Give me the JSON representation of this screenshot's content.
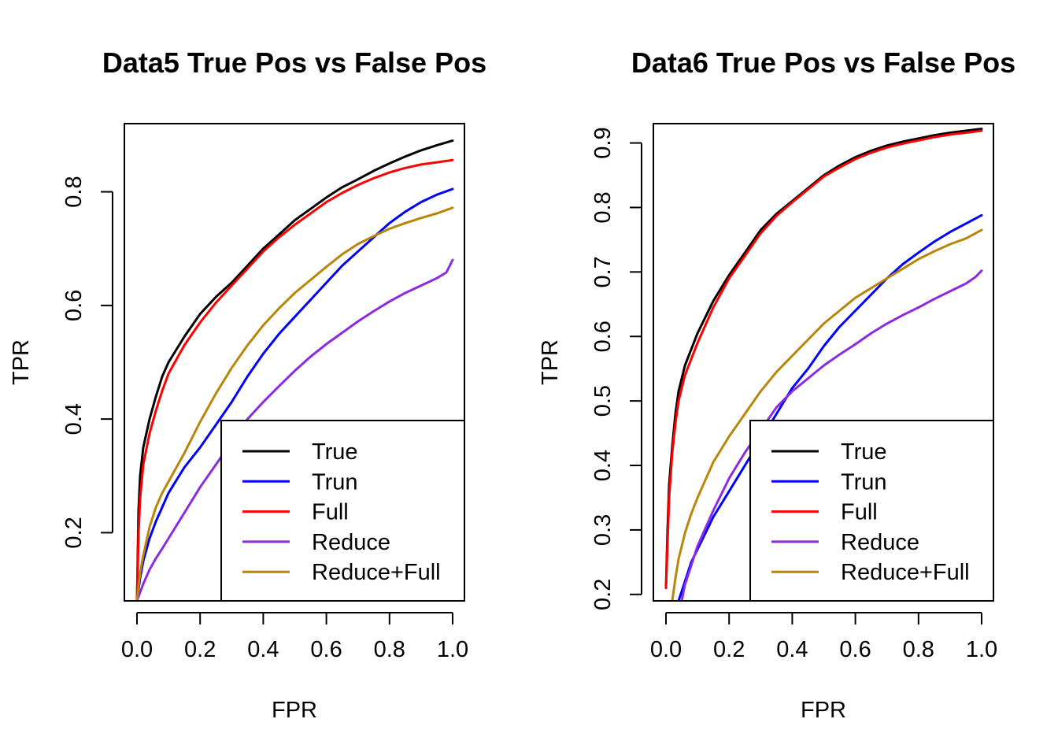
{
  "chart_data": [
    {
      "type": "line",
      "title": "Data5 True Pos vs False Pos",
      "xlabel": "FPR",
      "ylabel": "TPR",
      "xlim": [
        0,
        1
      ],
      "ylim": [
        0.08,
        0.92
      ],
      "xticks": [
        0,
        0.2,
        0.4,
        0.6,
        0.8,
        1
      ],
      "xtick_labels": [
        "0.0",
        "0.2",
        "0.4",
        "0.6",
        "0.8",
        "1.0"
      ],
      "yticks": [
        0.2,
        0.4,
        0.6,
        0.8
      ],
      "ytick_labels": [
        "0.2",
        "0.4",
        "0.6",
        "0.8"
      ],
      "legend_position": "bottom-right",
      "series": [
        {
          "name": "True",
          "color": "#000000",
          "x": [
            0,
            0.005,
            0.01,
            0.02,
            0.04,
            0.06,
            0.08,
            0.1,
            0.15,
            0.2,
            0.25,
            0.3,
            0.35,
            0.4,
            0.45,
            0.5,
            0.55,
            0.6,
            0.65,
            0.7,
            0.75,
            0.8,
            0.85,
            0.9,
            0.95,
            1.0
          ],
          "y": [
            0.08,
            0.24,
            0.3,
            0.35,
            0.4,
            0.44,
            0.475,
            0.5,
            0.545,
            0.585,
            0.615,
            0.64,
            0.67,
            0.7,
            0.725,
            0.75,
            0.77,
            0.79,
            0.808,
            0.822,
            0.837,
            0.85,
            0.862,
            0.873,
            0.882,
            0.89
          ]
        },
        {
          "name": "Trun",
          "color": "#0000ff",
          "x": [
            0,
            0.01,
            0.02,
            0.04,
            0.06,
            0.08,
            0.1,
            0.15,
            0.2,
            0.25,
            0.3,
            0.35,
            0.4,
            0.45,
            0.5,
            0.55,
            0.6,
            0.65,
            0.7,
            0.75,
            0.8,
            0.85,
            0.9,
            0.95,
            1.0
          ],
          "y": [
            0.08,
            0.12,
            0.15,
            0.19,
            0.22,
            0.245,
            0.27,
            0.315,
            0.35,
            0.39,
            0.43,
            0.475,
            0.515,
            0.55,
            0.58,
            0.61,
            0.64,
            0.67,
            0.695,
            0.72,
            0.745,
            0.765,
            0.782,
            0.795,
            0.805
          ]
        },
        {
          "name": "Full",
          "color": "#ff0000",
          "x": [
            0,
            0.005,
            0.01,
            0.02,
            0.04,
            0.06,
            0.08,
            0.1,
            0.15,
            0.2,
            0.25,
            0.3,
            0.35,
            0.4,
            0.45,
            0.5,
            0.55,
            0.6,
            0.65,
            0.7,
            0.75,
            0.8,
            0.85,
            0.9,
            0.95,
            1.0
          ],
          "y": [
            0.08,
            0.2,
            0.26,
            0.32,
            0.375,
            0.415,
            0.45,
            0.48,
            0.53,
            0.57,
            0.605,
            0.635,
            0.665,
            0.695,
            0.72,
            0.742,
            0.762,
            0.782,
            0.798,
            0.812,
            0.824,
            0.834,
            0.842,
            0.848,
            0.852,
            0.856
          ]
        },
        {
          "name": "Reduce",
          "color": "#8a2be2",
          "x": [
            0,
            0.02,
            0.04,
            0.06,
            0.08,
            0.1,
            0.15,
            0.2,
            0.25,
            0.3,
            0.35,
            0.4,
            0.45,
            0.5,
            0.55,
            0.6,
            0.65,
            0.7,
            0.75,
            0.8,
            0.85,
            0.9,
            0.95,
            0.98,
            1.0
          ],
          "y": [
            0.08,
            0.11,
            0.135,
            0.155,
            0.172,
            0.19,
            0.235,
            0.28,
            0.32,
            0.36,
            0.4,
            0.43,
            0.458,
            0.485,
            0.51,
            0.532,
            0.552,
            0.572,
            0.59,
            0.607,
            0.622,
            0.635,
            0.648,
            0.658,
            0.68
          ]
        },
        {
          "name": "Reduce+Full",
          "color": "#b8860b",
          "x": [
            0,
            0.01,
            0.02,
            0.04,
            0.06,
            0.08,
            0.1,
            0.15,
            0.2,
            0.25,
            0.3,
            0.35,
            0.4,
            0.45,
            0.5,
            0.55,
            0.6,
            0.65,
            0.7,
            0.75,
            0.8,
            0.85,
            0.9,
            0.95,
            1.0
          ],
          "y": [
            0.08,
            0.13,
            0.16,
            0.21,
            0.245,
            0.27,
            0.29,
            0.34,
            0.395,
            0.445,
            0.49,
            0.53,
            0.565,
            0.595,
            0.622,
            0.645,
            0.668,
            0.69,
            0.708,
            0.722,
            0.735,
            0.745,
            0.754,
            0.762,
            0.772
          ]
        }
      ]
    },
    {
      "type": "line",
      "title": "Data6 True Pos vs False Pos",
      "xlabel": "FPR",
      "ylabel": "TPR",
      "xlim": [
        0,
        1
      ],
      "ylim": [
        0.19,
        0.93
      ],
      "xticks": [
        0,
        0.2,
        0.4,
        0.6,
        0.8,
        1
      ],
      "xtick_labels": [
        "0.0",
        "0.2",
        "0.4",
        "0.6",
        "0.8",
        "1.0"
      ],
      "yticks": [
        0.2,
        0.3,
        0.4,
        0.5,
        0.6,
        0.7,
        0.8,
        0.9
      ],
      "ytick_labels": [
        "0.2",
        "0.3",
        "0.4",
        "0.5",
        "0.6",
        "0.7",
        "0.8",
        "0.9"
      ],
      "legend_position": "bottom-right",
      "series": [
        {
          "name": "True",
          "color": "#000000",
          "x": [
            0,
            0.005,
            0.01,
            0.02,
            0.03,
            0.04,
            0.06,
            0.08,
            0.1,
            0.15,
            0.2,
            0.25,
            0.3,
            0.35,
            0.4,
            0.45,
            0.5,
            0.55,
            0.6,
            0.65,
            0.7,
            0.75,
            0.8,
            0.85,
            0.9,
            0.95,
            1.0
          ],
          "y": [
            0.21,
            0.3,
            0.37,
            0.43,
            0.48,
            0.515,
            0.555,
            0.58,
            0.605,
            0.655,
            0.695,
            0.73,
            0.765,
            0.79,
            0.81,
            0.83,
            0.85,
            0.865,
            0.878,
            0.888,
            0.896,
            0.902,
            0.907,
            0.912,
            0.916,
            0.919,
            0.922
          ]
        },
        {
          "name": "Trun",
          "color": "#0000ff",
          "x": [
            0.04,
            0.06,
            0.08,
            0.1,
            0.15,
            0.2,
            0.25,
            0.3,
            0.35,
            0.4,
            0.45,
            0.5,
            0.55,
            0.6,
            0.65,
            0.7,
            0.75,
            0.8,
            0.85,
            0.9,
            0.95,
            1.0
          ],
          "y": [
            0.19,
            0.22,
            0.25,
            0.27,
            0.32,
            0.36,
            0.4,
            0.44,
            0.48,
            0.52,
            0.55,
            0.585,
            0.615,
            0.64,
            0.665,
            0.69,
            0.712,
            0.73,
            0.747,
            0.762,
            0.775,
            0.788
          ]
        },
        {
          "name": "Full",
          "color": "#ff0000",
          "x": [
            0,
            0.005,
            0.01,
            0.02,
            0.03,
            0.04,
            0.06,
            0.08,
            0.1,
            0.15,
            0.2,
            0.25,
            0.3,
            0.35,
            0.4,
            0.45,
            0.5,
            0.55,
            0.6,
            0.65,
            0.7,
            0.75,
            0.8,
            0.85,
            0.9,
            0.95,
            1.0
          ],
          "y": [
            0.21,
            0.28,
            0.35,
            0.42,
            0.465,
            0.5,
            0.54,
            0.565,
            0.59,
            0.645,
            0.69,
            0.725,
            0.76,
            0.787,
            0.808,
            0.828,
            0.848,
            0.862,
            0.875,
            0.885,
            0.893,
            0.899,
            0.904,
            0.909,
            0.913,
            0.916,
            0.919
          ]
        },
        {
          "name": "Reduce",
          "color": "#8a2be2",
          "x": [
            0.05,
            0.06,
            0.08,
            0.1,
            0.15,
            0.2,
            0.25,
            0.3,
            0.35,
            0.4,
            0.45,
            0.5,
            0.55,
            0.6,
            0.65,
            0.7,
            0.75,
            0.8,
            0.85,
            0.9,
            0.95,
            0.98,
            1.0
          ],
          "y": [
            0.19,
            0.215,
            0.245,
            0.275,
            0.33,
            0.38,
            0.42,
            0.455,
            0.49,
            0.515,
            0.535,
            0.555,
            0.572,
            0.588,
            0.605,
            0.62,
            0.633,
            0.645,
            0.658,
            0.67,
            0.682,
            0.692,
            0.702
          ]
        },
        {
          "name": "Reduce+Full",
          "color": "#b8860b",
          "x": [
            0.02,
            0.03,
            0.04,
            0.06,
            0.08,
            0.1,
            0.15,
            0.2,
            0.25,
            0.3,
            0.35,
            0.4,
            0.45,
            0.5,
            0.55,
            0.6,
            0.65,
            0.7,
            0.75,
            0.8,
            0.85,
            0.9,
            0.95,
            1.0
          ],
          "y": [
            0.19,
            0.225,
            0.255,
            0.295,
            0.325,
            0.35,
            0.405,
            0.445,
            0.48,
            0.515,
            0.545,
            0.57,
            0.595,
            0.62,
            0.64,
            0.66,
            0.675,
            0.69,
            0.705,
            0.72,
            0.732,
            0.743,
            0.752,
            0.765
          ]
        }
      ]
    }
  ]
}
